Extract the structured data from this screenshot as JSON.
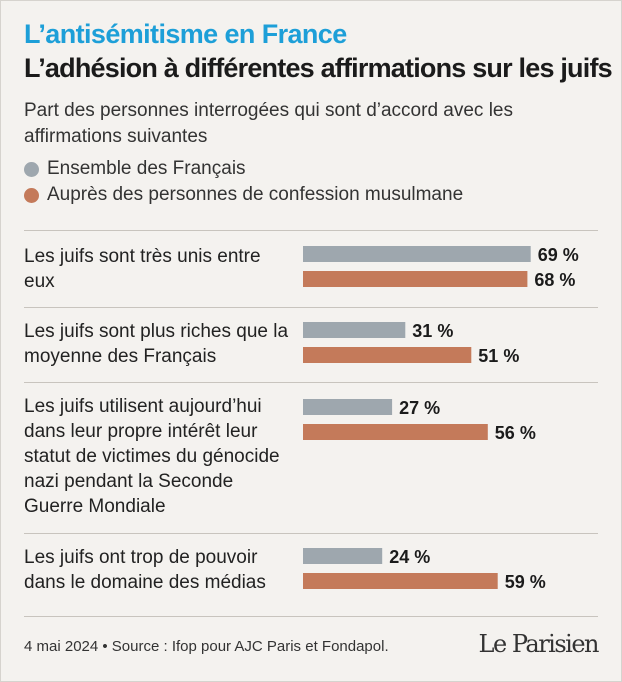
{
  "kicker": "L’antisémitisme en France",
  "title": "L’adhésion à différentes affirmations sur les juifs",
  "subtitle": "Part des personnes interrogées qui sont d’accord avec les affirmations suivantes",
  "colors": {
    "ensemble": "#9ea7ae",
    "musulmans": "#c47a5a",
    "kicker": "#1d9fd8"
  },
  "chart_data": {
    "type": "bar",
    "orientation": "horizontal",
    "unit": "%",
    "xlim": [
      0,
      100
    ],
    "categories": [
      "Les juifs sont très unis entre eux",
      "Les juifs sont plus riches que la moyenne des Français",
      "Les juifs utilisent aujourd’hui dans leur propre intérêt leur statut de victimes du génocide nazi pendant la Seconde Guerre Mondiale",
      "Les juifs ont trop de pouvoir dans le domaine des médias"
    ],
    "series": [
      {
        "name": "Ensemble des Français",
        "values": [
          69,
          31,
          27,
          24
        ]
      },
      {
        "name": "Auprès des personnes de confession musulmane",
        "values": [
          68,
          51,
          56,
          59
        ]
      }
    ],
    "labels": [
      [
        "69 %",
        "68 %"
      ],
      [
        "31 %",
        "51 %"
      ],
      [
        "27 %",
        "56 %"
      ],
      [
        "24 %",
        "59 %"
      ]
    ]
  },
  "footer": "4 mai 2024 • Source : Ifop pour AJC Paris et Fondapol.",
  "logo": "Le Parisien"
}
